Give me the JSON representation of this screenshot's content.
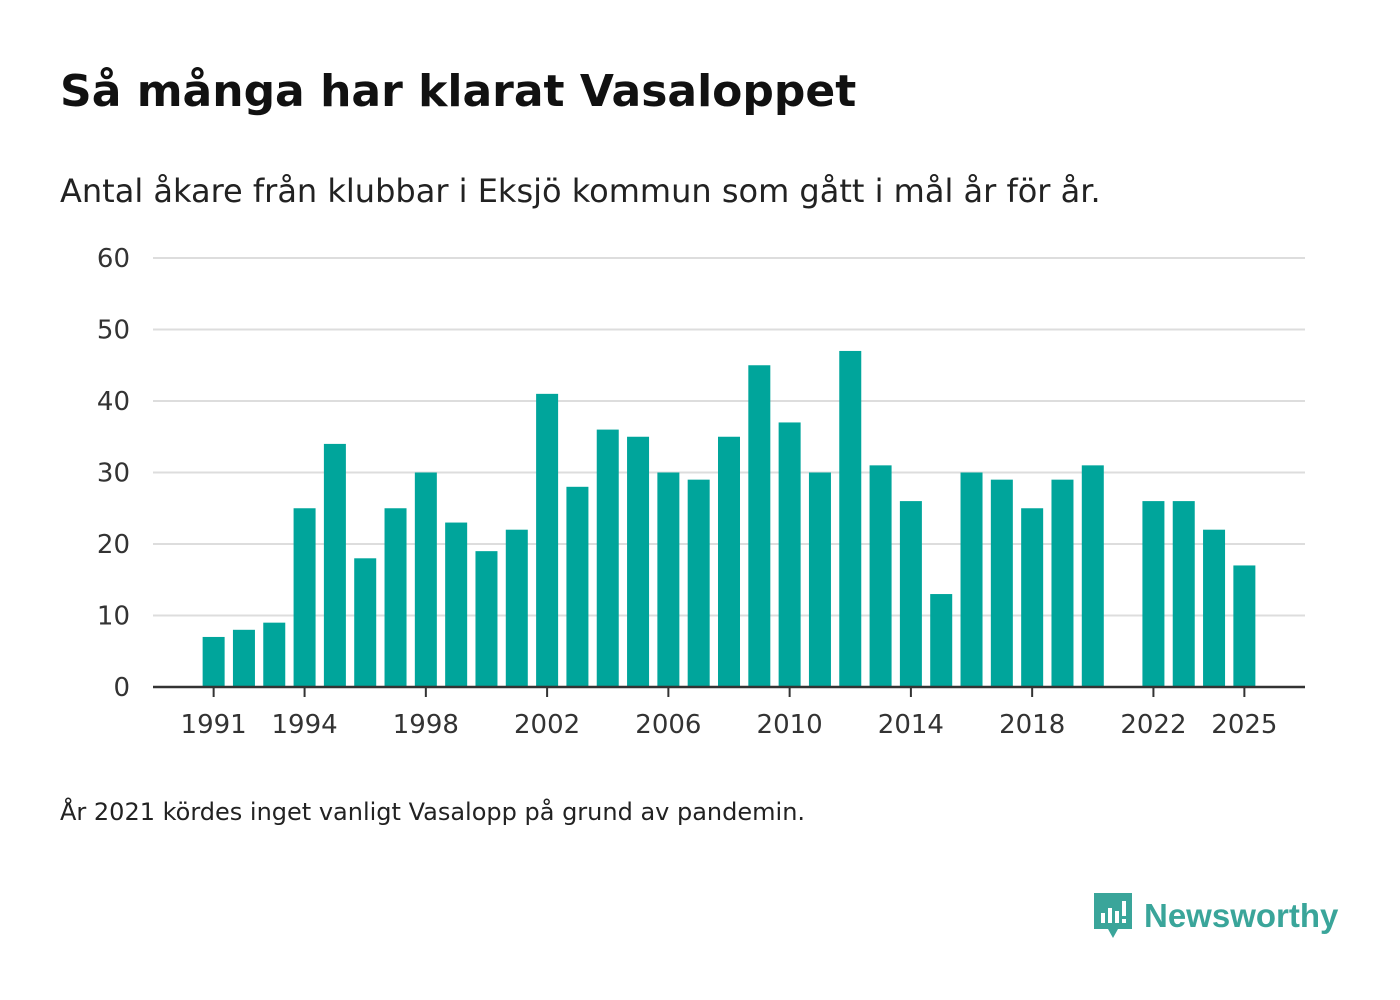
{
  "title": "Så många har klarat Vasaloppet",
  "subtitle": "Antal åkare från klubbar i Eksjö kommun som gått i mål år för år.",
  "footnote": "År 2021 kördes inget vanligt Vasalopp på grund av pandemin.",
  "brand": {
    "name": "Newsworthy",
    "icon": "newsworthy-logo-icon",
    "color": "#3aa59a"
  },
  "colors": {
    "bar": "#00a59b",
    "grid": "#dddddd",
    "axis": "#333333",
    "tick_text": "#333333"
  },
  "chart_data": {
    "type": "bar",
    "title": "Så många har klarat Vasaloppet",
    "subtitle": "Antal åkare från klubbar i Eksjö kommun som gått i mål år för år.",
    "xlabel": "",
    "ylabel": "",
    "ylim": [
      0,
      60
    ],
    "yticks": [
      0,
      10,
      20,
      30,
      40,
      50,
      60
    ],
    "xlim": [
      1989,
      2027
    ],
    "xticks": [
      1991,
      1994,
      1998,
      2002,
      2006,
      2010,
      2014,
      2018,
      2022,
      2025
    ],
    "grid": true,
    "legend": "none",
    "categories": [
      1991,
      1992,
      1993,
      1994,
      1995,
      1996,
      1997,
      1998,
      1999,
      2000,
      2001,
      2002,
      2003,
      2004,
      2005,
      2006,
      2007,
      2008,
      2009,
      2010,
      2011,
      2012,
      2013,
      2014,
      2015,
      2016,
      2017,
      2018,
      2019,
      2020,
      2021,
      2022,
      2023,
      2024,
      2025
    ],
    "values": [
      7,
      8,
      9,
      25,
      34,
      18,
      25,
      30,
      23,
      19,
      22,
      41,
      28,
      36,
      35,
      30,
      29,
      35,
      45,
      37,
      30,
      47,
      31,
      26,
      13,
      30,
      29,
      25,
      29,
      31,
      null,
      26,
      26,
      22,
      17
    ]
  }
}
